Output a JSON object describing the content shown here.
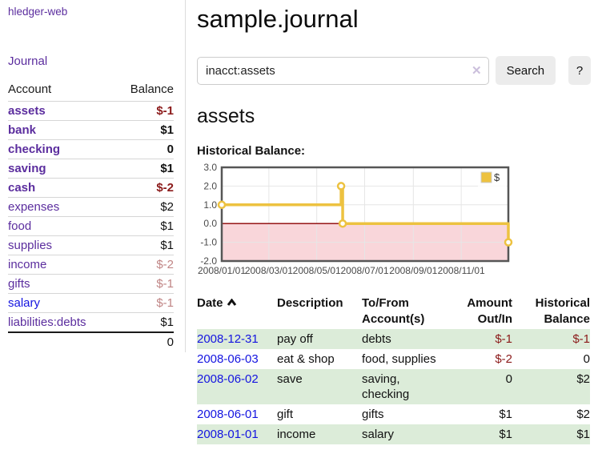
{
  "app": {
    "title": "hledger-web"
  },
  "sidebar": {
    "journal_label": "Journal",
    "table": {
      "account_header": "Account",
      "balance_header": "Balance",
      "accounts": [
        {
          "name": "assets",
          "balance": "$-1"
        },
        {
          "name": "bank",
          "balance": "$1"
        },
        {
          "name": "checking",
          "balance": "0"
        },
        {
          "name": "saving",
          "balance": "$1"
        },
        {
          "name": "cash",
          "balance": "$-2"
        },
        {
          "name": "expenses",
          "balance": "$2"
        },
        {
          "name": "food",
          "balance": "$1"
        },
        {
          "name": "supplies",
          "balance": "$1"
        },
        {
          "name": "income",
          "balance": "$-2"
        },
        {
          "name": "gifts",
          "balance": "$-1"
        },
        {
          "name": "salary",
          "balance": "$-1"
        },
        {
          "name": "liabilities:debts",
          "balance": "$1"
        }
      ],
      "total": "0"
    }
  },
  "main": {
    "page_title": "sample.journal",
    "search": {
      "value": "inacct:assets",
      "clear_icon": "✕",
      "button_label": "Search",
      "help_label": "?"
    },
    "account_heading": "assets",
    "chart_heading": "Historical Balance:"
  },
  "chart_data": {
    "type": "line",
    "title": "Historical Balance",
    "step": true,
    "xlim": [
      "2008-01-01",
      "2008-12-31"
    ],
    "ylim": [
      -2,
      3
    ],
    "yticks": [
      {
        "v": 3,
        "label": "3.0"
      },
      {
        "v": 2,
        "label": "2.0"
      },
      {
        "v": 1,
        "label": "1.0"
      },
      {
        "v": 0,
        "label": "0.0"
      },
      {
        "v": -1,
        "label": "-1.0"
      },
      {
        "v": -2,
        "label": "-2.0"
      }
    ],
    "xticks": [
      {
        "date": "2008-01-01",
        "label": "2008/01/01"
      },
      {
        "date": "2008-03-01",
        "label": "2008/03/01"
      },
      {
        "date": "2008-05-01",
        "label": "2008/05/01"
      },
      {
        "date": "2008-07-01",
        "label": "2008/07/01"
      },
      {
        "date": "2008-09-01",
        "label": "2008/09/01"
      },
      {
        "date": "2008-11-01",
        "label": "2008/11/01"
      }
    ],
    "series": [
      {
        "name": "$",
        "color": "#edc240",
        "points": [
          [
            "2008-01-01",
            1
          ],
          [
            "2008-06-01",
            2
          ],
          [
            "2008-06-03",
            0
          ],
          [
            "2008-12-31",
            -1
          ]
        ]
      }
    ],
    "legend_position": "top-right",
    "colors": {
      "negative_region": "#f9d6da",
      "zero_line": "#8b0000",
      "grid": "#e6e6e6",
      "border": "#565656",
      "marker_fill": "#ffffff"
    }
  },
  "transactions": {
    "headers": {
      "date": "Date",
      "description": "Description",
      "accounts": "To/From Account(s)",
      "amount": "Amount Out/In",
      "balance": "Historical Balance"
    },
    "rows": [
      {
        "date": "2008-12-31",
        "description": "pay off",
        "accounts": "debts",
        "amount": "$-1",
        "balance": "$-1"
      },
      {
        "date": "2008-06-03",
        "description": "eat & shop",
        "accounts": "food, supplies",
        "amount": "$-2",
        "balance": "0"
      },
      {
        "date": "2008-06-02",
        "description": "save",
        "accounts": "saving, checking",
        "amount": "0",
        "balance": "$2"
      },
      {
        "date": "2008-06-01",
        "description": "gift",
        "accounts": "gifts",
        "amount": "$1",
        "balance": "$2"
      },
      {
        "date": "2008-01-01",
        "description": "income",
        "accounts": "salary",
        "amount": "$1",
        "balance": "$1"
      }
    ]
  },
  "colors": {
    "link_purple": "#5b2d9e",
    "link_blue": "#1414e0",
    "negative_red": "#8b1a1a",
    "faded_red": "#c08585",
    "row_green": "#dcecd9",
    "series_gold": "#edc240"
  }
}
